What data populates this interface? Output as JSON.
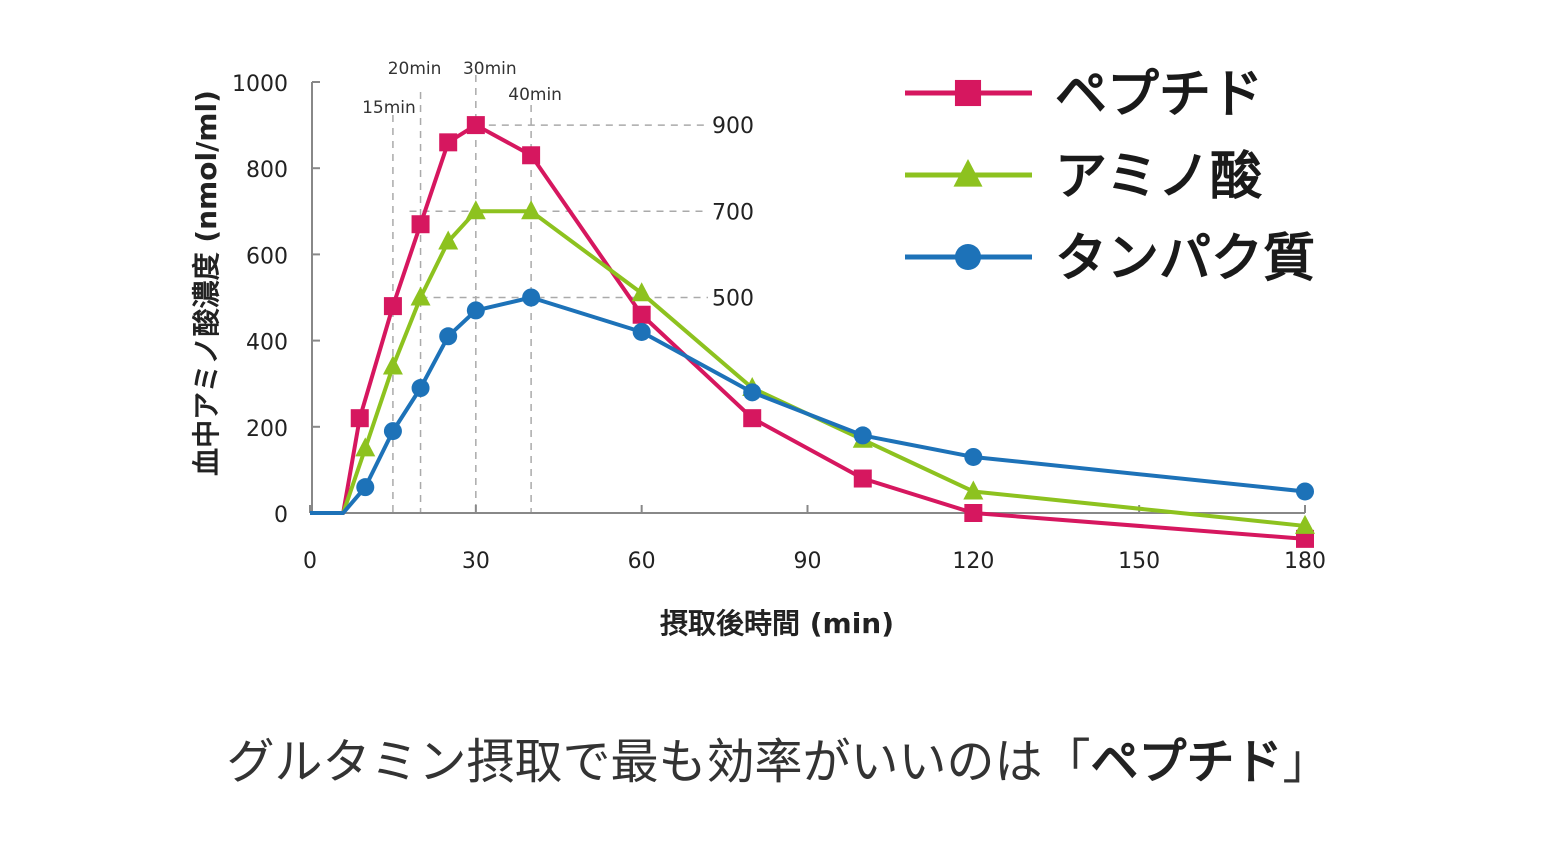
{
  "chart_data": {
    "type": "line",
    "xlabel": "摂取後時間 (min)",
    "ylabel": "血中アミノ酸濃度 (nmol/ml)",
    "xlim": [
      0,
      180
    ],
    "ylim": [
      0,
      1000
    ],
    "xticks": [
      0,
      30,
      60,
      90,
      120,
      150,
      180
    ],
    "yticks": [
      0,
      200,
      400,
      600,
      800,
      1000
    ],
    "grid": false,
    "legend_placement": "top-right",
    "guides": {
      "vertical": [
        {
          "x": 15,
          "label": "15min"
        },
        {
          "x": 20,
          "label": "20min"
        },
        {
          "x": 30,
          "label": "30min"
        },
        {
          "x": 40,
          "label": "40min"
        }
      ],
      "horizontal": [
        {
          "y": 900,
          "label": "900",
          "from_x": 30
        },
        {
          "y": 700,
          "label": "700",
          "from_x": 18
        },
        {
          "y": 500,
          "label": "500",
          "from_x": 20
        }
      ]
    },
    "series": [
      {
        "name": "ペプチド",
        "color": "#d6175f",
        "marker": "square",
        "x": [
          0,
          6,
          9,
          15,
          20,
          25,
          30,
          40,
          60,
          80,
          100,
          120,
          180
        ],
        "y": [
          0,
          0,
          220,
          480,
          670,
          860,
          900,
          830,
          460,
          220,
          80,
          0,
          -60
        ]
      },
      {
        "name": "アミノ酸",
        "color": "#8dc21f",
        "marker": "triangle",
        "x": [
          0,
          6,
          10,
          15,
          20,
          25,
          30,
          40,
          60,
          80,
          100,
          120,
          180
        ],
        "y": [
          0,
          0,
          150,
          340,
          500,
          630,
          700,
          700,
          510,
          290,
          170,
          50,
          -30
        ]
      },
      {
        "name": "タンパク質",
        "color": "#1d72b8",
        "marker": "circle",
        "x": [
          0,
          6,
          10,
          15,
          20,
          25,
          30,
          40,
          60,
          80,
          100,
          120,
          180
        ],
        "y": [
          0,
          0,
          60,
          190,
          290,
          410,
          470,
          500,
          420,
          280,
          180,
          130,
          50
        ]
      }
    ]
  },
  "caption": {
    "main": "グルタミン摂取で最も効率がいいのは「",
    "bold": "ペプチド",
    "end": "」"
  }
}
